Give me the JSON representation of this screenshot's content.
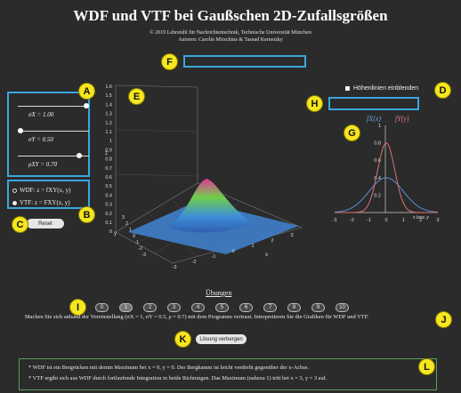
{
  "header": {
    "title": "WDF und VTF bei Gaußschen 2D-Zufallsgrößen",
    "copyright": "© 2019 Lehrstuhl für Nachrichtentechnik, Technische Universität München",
    "authors": "Autoren: Carolin Mirschina & Tasnad Kernetzky"
  },
  "markers": [
    "A",
    "B",
    "C",
    "D",
    "E",
    "F",
    "G",
    "H",
    "I",
    "J",
    "K",
    "L"
  ],
  "sliders": {
    "sigma_x": {
      "label": "σX = 1.00",
      "value": 1.0,
      "min": 0,
      "max": 1
    },
    "sigma_y": {
      "label": "σY = 0.50",
      "value": 0.5
    },
    "rho": {
      "label": "ρXY = 0.70",
      "value": 0.7
    }
  },
  "mode": {
    "wdf_label": "WDF: z = fXY(x, y)",
    "vtf_label": "VTF: z = FXY(x, y)",
    "selected": "VTF"
  },
  "reset_label": "Reset",
  "contour_label": "Höhenlinien einblenden",
  "plot3d": {
    "z_ticks": [
      "1.6",
      "1.5",
      "1.4",
      "1.3",
      "1.2",
      "1.1",
      "1",
      "0.9",
      "0.8",
      "0.7",
      "0.6",
      "0.5",
      "0.4",
      "0.3",
      "0.2",
      "0.1",
      "0"
    ],
    "z_axis": "z",
    "y_ticks": [
      "3",
      "2",
      "1",
      "0",
      "-1",
      "-2",
      "-3"
    ],
    "y_axis": "y",
    "x_ticks": [
      "-3",
      "-2",
      "-1",
      "0",
      "1",
      "2",
      "3"
    ],
    "x_axis": "x"
  },
  "chart_data": {
    "type": "line",
    "legend": [
      "fX(x)",
      "fY(y)"
    ],
    "xlabel": "x bzw. y",
    "x_ticks": [
      "-3",
      "-2",
      "-1",
      "0",
      "1",
      "2",
      "3"
    ],
    "y_ticks": [
      "1",
      "0.8",
      "0.6",
      "0.4",
      "0.2"
    ],
    "xlim": [
      -3,
      3
    ],
    "ylim": [
      0,
      1
    ],
    "series": [
      {
        "name": "fX(x)",
        "color": "#5a8fd6",
        "sigma": 1.0
      },
      {
        "name": "fY(y)",
        "color": "#e07070",
        "sigma": 0.5
      }
    ]
  },
  "exercises": {
    "heading": "Übungen",
    "buttons": [
      "0",
      "1",
      "2",
      "3",
      "4",
      "5",
      "6",
      "7",
      "8",
      "9",
      "10"
    ],
    "active_index": 1
  },
  "task_text": "Machen Sie sich anhand der Voreinstellung (σX = 1, σY = 0.5, ρ = 0.7) mit dem Programm vertraut. Interpretieren Sie die Grafiken für WDF und VTF.",
  "hide_solution_label": "Lösung verbergen",
  "solution": {
    "line1": "* WDF ist ein Bergrücken mit demm Maximum bei x = 0, y = 0. Der Bergkamm ist leicht verdreht gegenüber der x-Achse.",
    "line2": "* VTF ergibt sich aus WDF durch fortlaufende Integration in beide Richtungen. Das Maximum (nahezu 1) tritt bei x = 3, y = 3 auf."
  },
  "colors": {
    "accent_box": "#3aa6e0",
    "marker": "#f5e61f",
    "solution_border": "#5e9e59"
  }
}
